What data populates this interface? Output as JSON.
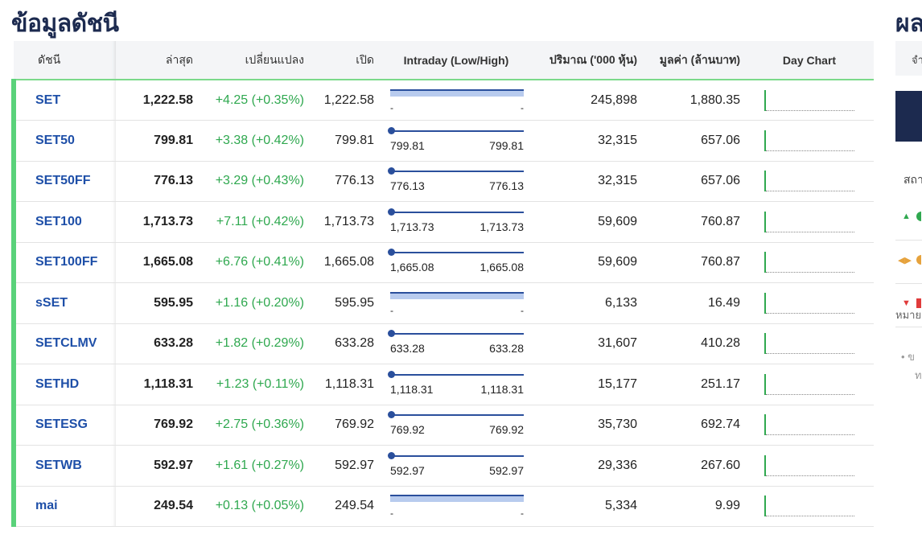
{
  "page": {
    "title": "ข้อมูลดัชนี"
  },
  "table": {
    "headers": {
      "name": "ดัชนี",
      "last": "ล่าสุด",
      "change": "เปลี่ยนแปลง",
      "open": "เปิด",
      "intraday": "Intraday (Low/High)",
      "volume": "ปริมาณ ('000 หุ้น)",
      "value": "มูลค่า (ล้านบาท)",
      "daychart": "Day Chart"
    },
    "rows": [
      {
        "name": "SET",
        "last": "1,222.58",
        "change": "+4.25 (+0.35%)",
        "open": "1,222.58",
        "low": "-",
        "high": "-",
        "volume": "245,898",
        "value": "1,880.35"
      },
      {
        "name": "SET50",
        "last": "799.81",
        "change": "+3.38 (+0.42%)",
        "open": "799.81",
        "low": "799.81",
        "high": "799.81",
        "volume": "32,315",
        "value": "657.06"
      },
      {
        "name": "SET50FF",
        "last": "776.13",
        "change": "+3.29 (+0.43%)",
        "open": "776.13",
        "low": "776.13",
        "high": "776.13",
        "volume": "32,315",
        "value": "657.06"
      },
      {
        "name": "SET100",
        "last": "1,713.73",
        "change": "+7.11 (+0.42%)",
        "open": "1,713.73",
        "low": "1,713.73",
        "high": "1,713.73",
        "volume": "59,609",
        "value": "760.87"
      },
      {
        "name": "SET100FF",
        "last": "1,665.08",
        "change": "+6.76 (+0.41%)",
        "open": "1,665.08",
        "low": "1,665.08",
        "high": "1,665.08",
        "volume": "59,609",
        "value": "760.87"
      },
      {
        "name": "sSET",
        "last": "595.95",
        "change": "+1.16 (+0.20%)",
        "open": "595.95",
        "low": "-",
        "high": "-",
        "volume": "6,133",
        "value": "16.49"
      },
      {
        "name": "SETCLMV",
        "last": "633.28",
        "change": "+1.82 (+0.29%)",
        "open": "633.28",
        "low": "633.28",
        "high": "633.28",
        "volume": "31,607",
        "value": "410.28"
      },
      {
        "name": "SETHD",
        "last": "1,118.31",
        "change": "+1.23 (+0.11%)",
        "open": "1,118.31",
        "low": "1,118.31",
        "high": "1,118.31",
        "volume": "15,177",
        "value": "251.17"
      },
      {
        "name": "SETESG",
        "last": "769.92",
        "change": "+2.75 (+0.36%)",
        "open": "769.92",
        "low": "769.92",
        "high": "769.92",
        "volume": "35,730",
        "value": "692.74"
      },
      {
        "name": "SETWB",
        "last": "592.97",
        "change": "+1.61 (+0.27%)",
        "open": "592.97",
        "low": "592.97",
        "high": "592.97",
        "volume": "29,336",
        "value": "267.60"
      },
      {
        "name": "mai",
        "last": "249.54",
        "change": "+0.13 (+0.05%)",
        "open": "249.54",
        "low": "-",
        "high": "-",
        "volume": "5,334",
        "value": "9.99"
      }
    ]
  },
  "side": {
    "title": "ผล",
    "tab": "จำ",
    "head": "สถา",
    "note": "หมาย",
    "bullet": "• ข",
    "bullet2": "ท"
  },
  "colors": {
    "title": "#1c2a4f",
    "accent_green": "#5ad27a",
    "positive": "#2fa84f",
    "link": "#1e4fa8",
    "bar": "#2a4f9c"
  }
}
